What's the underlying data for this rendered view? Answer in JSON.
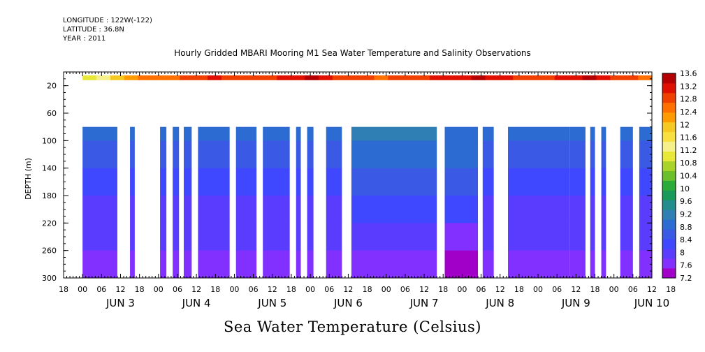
{
  "header": {
    "longitude": "LONGITUDE : 122W(-122)",
    "latitude": "LATITUDE : 36.8N",
    "year": "YEAR : 2011"
  },
  "chart_data": {
    "type": "heatmap",
    "title": "Hourly Gridded MBARI Mooring M1 Sea Water Temperature and Salinity Observations",
    "xlabel": "Sea Water Temperature (Celsius)",
    "ylabel": "DEPTH (m)",
    "xlim": [
      -6,
      180
    ],
    "ylim": [
      300,
      0
    ],
    "x_unit": "hours since 2011-06-03 00:00",
    "yticks": [
      20,
      60,
      100,
      140,
      180,
      220,
      260,
      300
    ],
    "xtick_hours": [
      "18",
      "00",
      "06",
      "12",
      "18",
      "00",
      "06",
      "12",
      "18",
      "00",
      "06",
      "12",
      "18",
      "00",
      "06",
      "12",
      "18",
      "00",
      "06",
      "12",
      "18",
      "00",
      "06",
      "12",
      "18",
      "00",
      "06",
      "12",
      "18",
      "00",
      "06",
      "12",
      "18"
    ],
    "xtick_dates": [
      "JUN  3",
      "JUN  4",
      "JUN  5",
      "JUN  6",
      "JUN  7",
      "JUN  8",
      "JUN  9",
      "JUN 10"
    ],
    "colorbar": {
      "labels": [
        "13.6",
        "13.2",
        "12.8",
        "12.4",
        "12",
        "11.6",
        "11.2",
        "10.8",
        "10.4",
        "10",
        "9.6",
        "9.2",
        "8.8",
        "8.4",
        "8",
        "7.6",
        "7.2"
      ],
      "vmin": 7.2,
      "vmax": 13.6,
      "colors": [
        "#a000c8",
        "#8230ff",
        "#5a3cff",
        "#3f48ff",
        "#3a5ae6",
        "#2c6cd2",
        "#2f7eb4",
        "#238c8c",
        "#1a9a5a",
        "#2bab3a",
        "#6bbf2a",
        "#a8d428",
        "#e8e838",
        "#f5f08a",
        "#f8e040",
        "#f5c822",
        "#ff9a00",
        "#ff7000",
        "#f04000",
        "#e01000",
        "#b40000"
      ]
    },
    "surface": {
      "depth_range": [
        5,
        12
      ],
      "x_start": 0,
      "temps": [
        11.0,
        11.4,
        11.8,
        12.2,
        12.4,
        12.5,
        12.6,
        12.7,
        12.9,
        13.0,
        12.9,
        12.8,
        12.7,
        12.8,
        13.0,
        13.2,
        13.3,
        13.1,
        12.9,
        12.8,
        12.7,
        12.6,
        12.7,
        12.8,
        12.9,
        13.0,
        13.1,
        13.2,
        13.3,
        13.2,
        13.0,
        12.8,
        12.7,
        12.8,
        13.0,
        13.2,
        13.3,
        13.1,
        12.9,
        12.8,
        12.6
      ]
    },
    "column_depth_range": [
      80,
      300
    ],
    "depth_levels": [
      80,
      100,
      140,
      180,
      220,
      260,
      300
    ],
    "column_temps": {
      "normal": [
        9.0,
        8.8,
        8.5,
        8.2,
        8.0,
        7.8,
        7.7
      ],
      "warm": [
        9.4,
        9.1,
        8.7,
        8.3,
        8.0,
        7.7,
        7.5
      ],
      "deep": [
        9.1,
        8.9,
        8.6,
        8.3,
        8.0,
        7.6,
        7.4
      ]
    },
    "segments": [
      {
        "x0": 0,
        "x1": 11,
        "p": "normal"
      },
      {
        "x0": 15,
        "x1": 16.5,
        "p": "normal"
      },
      {
        "x0": 24.5,
        "x1": 26.5,
        "p": "normal"
      },
      {
        "x0": 28.5,
        "x1": 30.5,
        "p": "normal"
      },
      {
        "x0": 32,
        "x1": 34.5,
        "p": "normal"
      },
      {
        "x0": 36.5,
        "x1": 46.5,
        "p": "normal"
      },
      {
        "x0": 48.5,
        "x1": 55,
        "p": "normal"
      },
      {
        "x0": 57,
        "x1": 65.5,
        "p": "normal"
      },
      {
        "x0": 67.5,
        "x1": 69,
        "p": "normal"
      },
      {
        "x0": 71,
        "x1": 73,
        "p": "normal"
      },
      {
        "x0": 77,
        "x1": 82,
        "p": "normal"
      },
      {
        "x0": 85,
        "x1": 112,
        "p": "warm"
      },
      {
        "x0": 114.5,
        "x1": 125,
        "p": "deep"
      },
      {
        "x0": 126.5,
        "x1": 130,
        "p": "normal"
      },
      {
        "x0": 134.5,
        "x1": 154,
        "p": "normal"
      },
      {
        "x0": 154,
        "x1": 159,
        "p": "normal"
      },
      {
        "x0": 160.5,
        "x1": 162,
        "p": "normal"
      },
      {
        "x0": 164,
        "x1": 165.5,
        "p": "normal"
      },
      {
        "x0": 170,
        "x1": 174,
        "p": "normal"
      },
      {
        "x0": 176,
        "x1": 184.5,
        "p": "normal"
      },
      {
        "x0": 186.5,
        "x1": 188,
        "p": "normal"
      }
    ]
  }
}
